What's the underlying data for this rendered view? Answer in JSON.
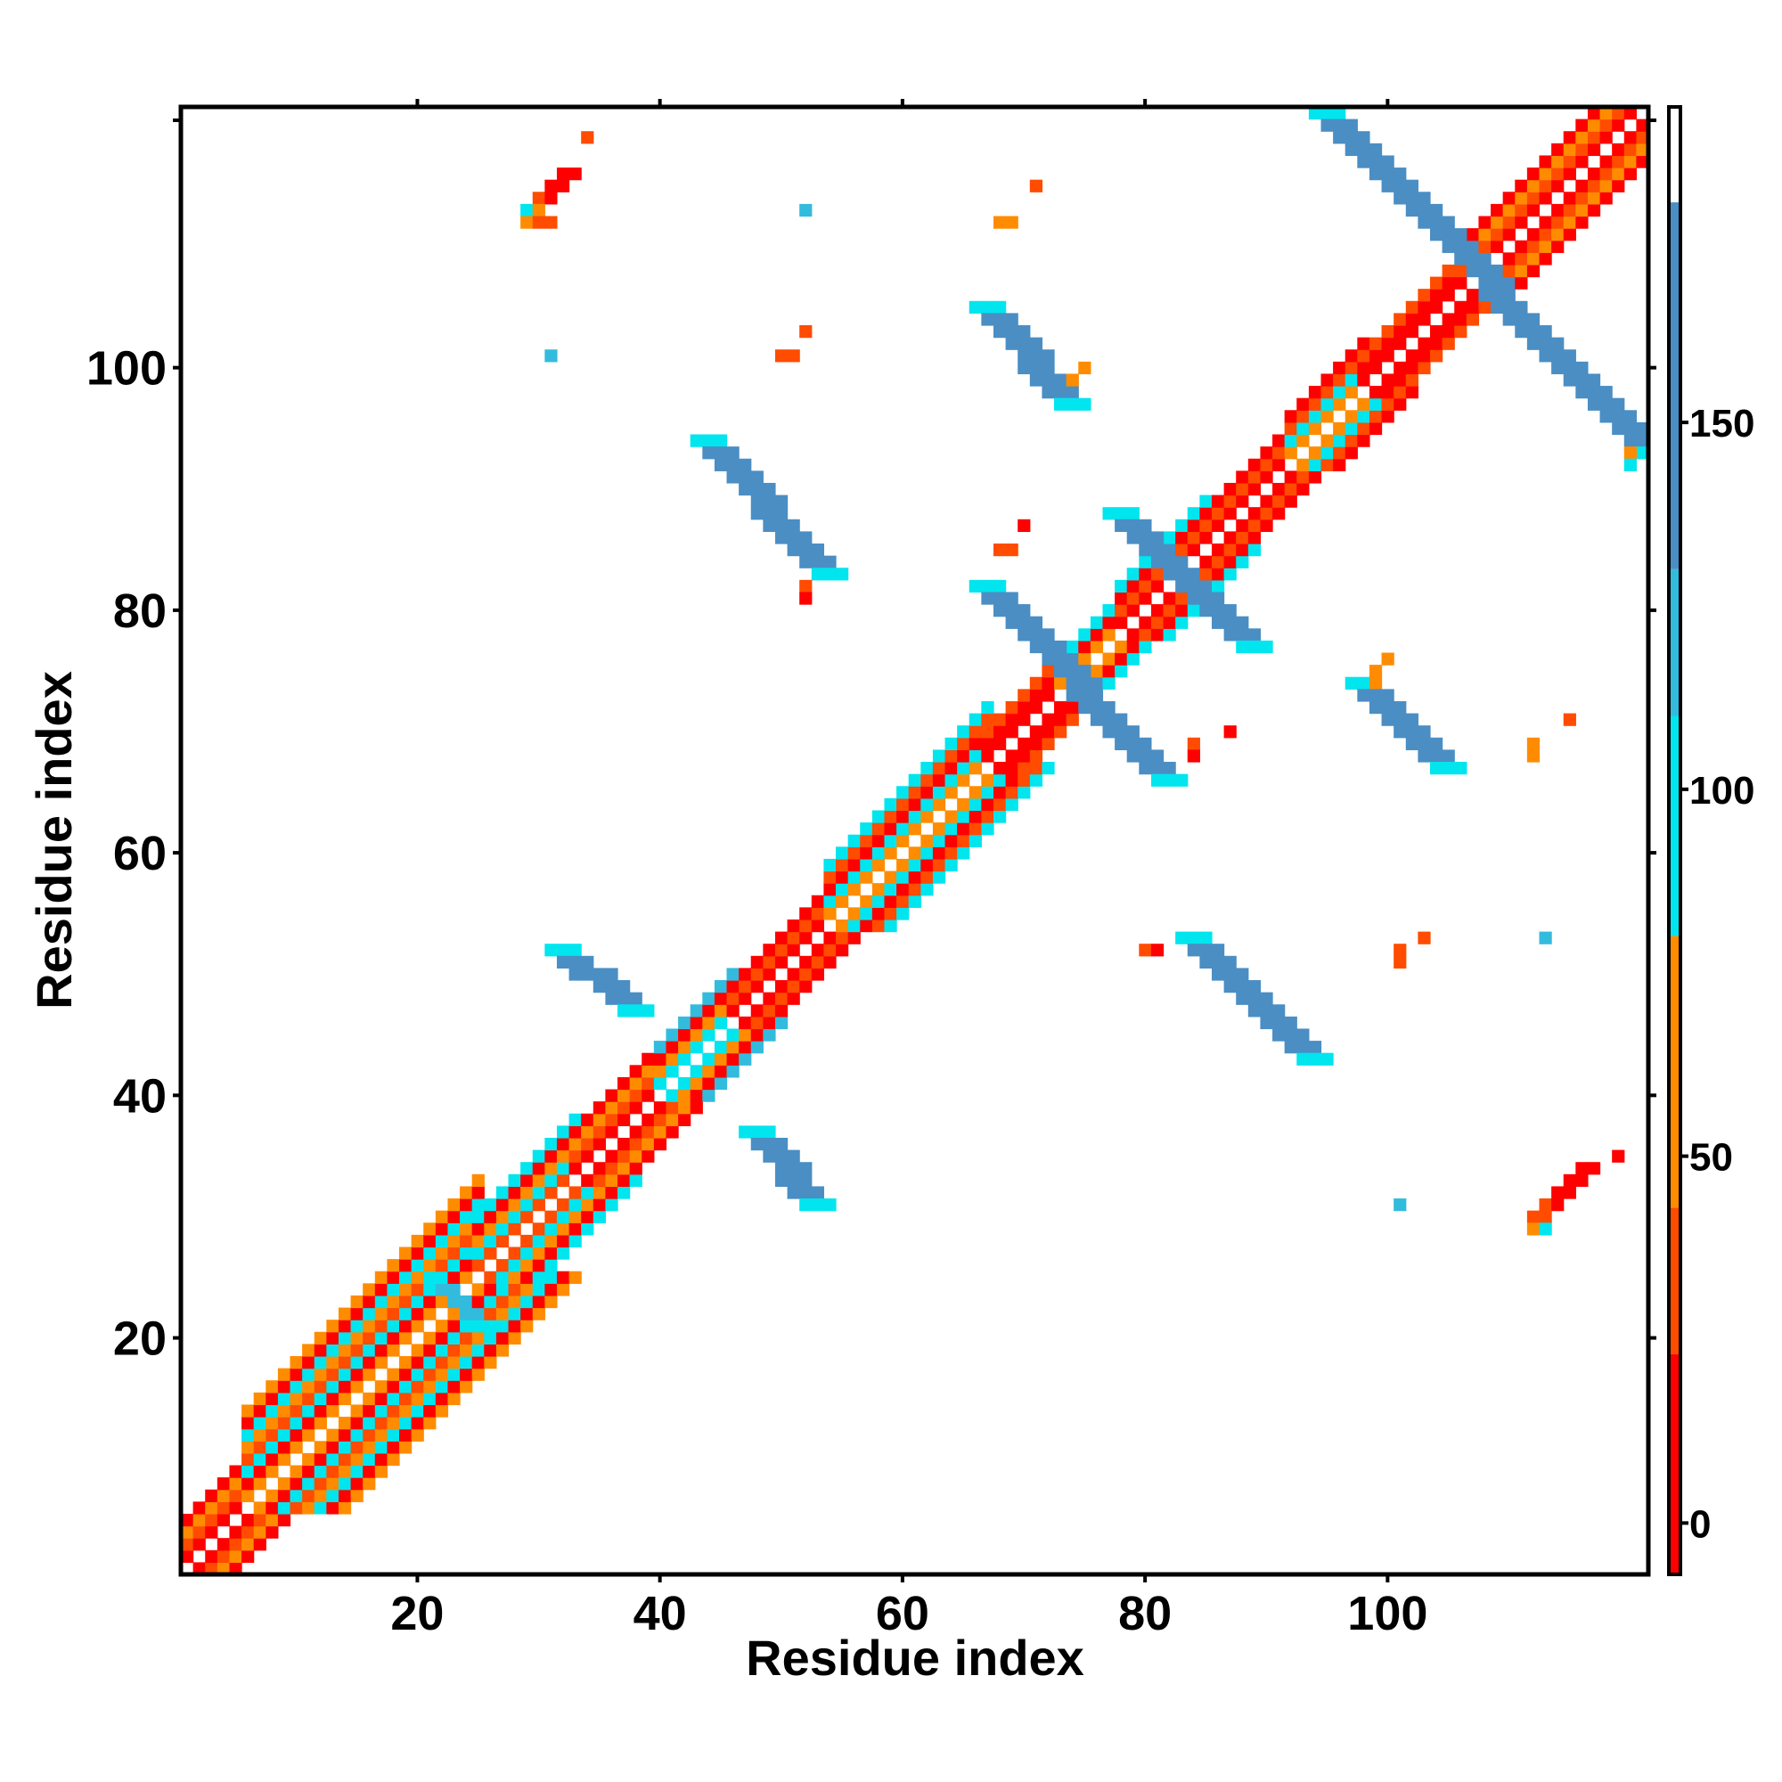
{
  "chart_data": {
    "type": "heatmap",
    "title": "",
    "xlabel": "Residue index",
    "ylabel": "Residue index",
    "xlim": [
      0.5,
      121.5
    ],
    "ylim": [
      0.5,
      121.5
    ],
    "xticks": [
      20,
      40,
      60,
      80,
      100
    ],
    "yticks": [
      20,
      40,
      60,
      80,
      100
    ],
    "grid": false,
    "colorbar": {
      "ticks": [
        0,
        50,
        100,
        150
      ],
      "range": [
        -7,
        193
      ],
      "bands": [
        {
          "from": -7,
          "to": 23,
          "color": "#ff0000"
        },
        {
          "from": 23,
          "to": 43,
          "color": "#ff4c00"
        },
        {
          "from": 43,
          "to": 80,
          "color": "#ff8c00"
        },
        {
          "from": 80,
          "to": 110,
          "color": "#00e5ee"
        },
        {
          "from": 110,
          "to": 130,
          "color": "#33bbdd"
        },
        {
          "from": 130,
          "to": 180,
          "color": "#4a8ec4"
        },
        {
          "from": 180,
          "to": 193,
          "color": "#ffffff"
        }
      ]
    },
    "colors": {
      "red": "#ff0000",
      "orange_red": "#ff4c00",
      "orange": "#ff8c00",
      "cyan": "#00e5ee",
      "sky": "#33bbdd",
      "steel_blue": "#4a8ec4"
    },
    "diagonal_bands": [
      {
        "start": 1,
        "end": 6,
        "pattern": [
          "red",
          "orange_red",
          "orange",
          "red"
        ]
      },
      {
        "start": 6,
        "end": 25,
        "pattern": [
          "orange",
          "red",
          "cyan",
          "orange_red",
          "orange",
          "cyan",
          "red",
          "orange"
        ]
      },
      {
        "start": 25,
        "end": 33,
        "pattern": [
          "orange_red",
          "cyan",
          "orange",
          "red",
          "cyan"
        ]
      },
      {
        "start": 33,
        "end": 40,
        "pattern": [
          "red",
          "orange_red",
          "orange",
          "red"
        ]
      },
      {
        "start": 40,
        "end": 46,
        "pattern": [
          "cyan",
          "orange",
          "red",
          "sky"
        ]
      },
      {
        "start": 46,
        "end": 54,
        "pattern": [
          "red",
          "orange_red",
          "red"
        ]
      },
      {
        "start": 54,
        "end": 67,
        "pattern": [
          "orange",
          "cyan",
          "red",
          "orange_red",
          "cyan"
        ]
      },
      {
        "start": 67,
        "end": 73,
        "pattern": [
          "red",
          "red",
          "orange_red"
        ]
      },
      {
        "start": 73,
        "end": 78,
        "pattern": [
          "orange",
          "red",
          "cyan"
        ]
      },
      {
        "start": 78,
        "end": 85,
        "pattern": [
          "red",
          "orange_red",
          "red",
          "cyan"
        ]
      },
      {
        "start": 85,
        "end": 92,
        "pattern": [
          "red",
          "orange_red",
          "red"
        ]
      },
      {
        "start": 92,
        "end": 98,
        "pattern": [
          "orange",
          "cyan",
          "orange_red",
          "red"
        ]
      },
      {
        "start": 98,
        "end": 106,
        "pattern": [
          "red",
          "red",
          "orange_red"
        ]
      },
      {
        "start": 106,
        "end": 121,
        "pattern": [
          "red",
          "orange_red",
          "orange",
          "red"
        ]
      }
    ],
    "anti_diagonal_bands": [
      {
        "color": "steel_blue",
        "edge": "cyan",
        "x0": 94,
        "y0": 121,
        "x1": 121,
        "y1": 93,
        "w": 3
      },
      {
        "color": "steel_blue",
        "edge": "cyan",
        "x0": 66,
        "y0": 105,
        "x1": 73,
        "y1": 97,
        "w": 3
      },
      {
        "color": "steel_blue",
        "edge": "cyan",
        "x0": 43,
        "y0": 94,
        "x1": 53,
        "y1": 83,
        "w": 3
      },
      {
        "color": "steel_blue",
        "edge": "cyan",
        "x0": 77,
        "y0": 88,
        "x1": 88,
        "y1": 77,
        "w": 3
      },
      {
        "color": "steel_blue",
        "edge": "cyan",
        "x0": 66,
        "y0": 82,
        "x1": 81,
        "y1": 66,
        "w": 3
      },
      {
        "color": "steel_blue",
        "edge": "cyan",
        "x0": 97,
        "y0": 74,
        "x1": 104,
        "y1": 67,
        "w": 3
      },
      {
        "color": "steel_blue",
        "edge": "cyan",
        "x0": 31,
        "y0": 52,
        "x1": 37,
        "y1": 47,
        "w": 3
      },
      {
        "color": "steel_blue",
        "edge": "cyan",
        "x0": 83,
        "y0": 53,
        "x1": 93,
        "y1": 43,
        "w": 3
      },
      {
        "color": "steel_blue",
        "edge": "cyan",
        "x0": 47,
        "y0": 37,
        "x1": 52,
        "y1": 31,
        "w": 3
      },
      {
        "color": "sky",
        "edge": "cyan",
        "x0": 21,
        "y0": 25,
        "x1": 25,
        "y1": 21,
        "w": 2
      }
    ],
    "scattered_cells": [
      {
        "x": 34,
        "y": 119,
        "c": "orange_red"
      },
      {
        "x": 32,
        "y": 116,
        "c": "red"
      },
      {
        "x": 33,
        "y": 116,
        "c": "red"
      },
      {
        "x": 31,
        "y": 115,
        "c": "red"
      },
      {
        "x": 32,
        "y": 115,
        "c": "red"
      },
      {
        "x": 30,
        "y": 114,
        "c": "orange_red"
      },
      {
        "x": 31,
        "y": 114,
        "c": "red"
      },
      {
        "x": 29,
        "y": 113,
        "c": "cyan"
      },
      {
        "x": 30,
        "y": 113,
        "c": "orange"
      },
      {
        "x": 29,
        "y": 112,
        "c": "orange"
      },
      {
        "x": 30,
        "y": 112,
        "c": "orange_red"
      },
      {
        "x": 31,
        "y": 112,
        "c": "orange_red"
      },
      {
        "x": 71,
        "y": 115,
        "c": "orange_red"
      },
      {
        "x": 52,
        "y": 113,
        "c": "sky"
      },
      {
        "x": 68,
        "y": 112,
        "c": "orange"
      },
      {
        "x": 69,
        "y": 112,
        "c": "orange"
      },
      {
        "x": 52,
        "y": 103,
        "c": "orange_red"
      },
      {
        "x": 50,
        "y": 101,
        "c": "orange_red"
      },
      {
        "x": 51,
        "y": 101,
        "c": "orange_red"
      },
      {
        "x": 31,
        "y": 101,
        "c": "sky"
      },
      {
        "x": 75,
        "y": 100,
        "c": "orange"
      },
      {
        "x": 74,
        "y": 99,
        "c": "orange"
      },
      {
        "x": 70,
        "y": 87,
        "c": "red"
      },
      {
        "x": 68,
        "y": 85,
        "c": "orange_red"
      },
      {
        "x": 69,
        "y": 85,
        "c": "orange_red"
      },
      {
        "x": 52,
        "y": 82,
        "c": "orange_red"
      },
      {
        "x": 52,
        "y": 81,
        "c": "red"
      },
      {
        "x": 100,
        "y": 76,
        "c": "orange"
      },
      {
        "x": 99,
        "y": 75,
        "c": "orange"
      },
      {
        "x": 99,
        "y": 74,
        "c": "orange"
      },
      {
        "x": 115,
        "y": 71,
        "c": "orange_red"
      },
      {
        "x": 87,
        "y": 70,
        "c": "red"
      },
      {
        "x": 84,
        "y": 69,
        "c": "orange_red"
      },
      {
        "x": 112,
        "y": 69,
        "c": "orange"
      },
      {
        "x": 84,
        "y": 68,
        "c": "red"
      },
      {
        "x": 112,
        "y": 68,
        "c": "orange"
      },
      {
        "x": 80,
        "y": 52,
        "c": "orange_red"
      },
      {
        "x": 81,
        "y": 52,
        "c": "red"
      },
      {
        "x": 103,
        "y": 53,
        "c": "orange_red"
      },
      {
        "x": 101,
        "y": 52,
        "c": "orange_red"
      },
      {
        "x": 101,
        "y": 51,
        "c": "orange_red"
      },
      {
        "x": 113,
        "y": 53,
        "c": "sky"
      },
      {
        "x": 119,
        "y": 35,
        "c": "red"
      },
      {
        "x": 116,
        "y": 34,
        "c": "red"
      },
      {
        "x": 117,
        "y": 34,
        "c": "red"
      },
      {
        "x": 115,
        "y": 33,
        "c": "red"
      },
      {
        "x": 116,
        "y": 33,
        "c": "red"
      },
      {
        "x": 114,
        "y": 32,
        "c": "red"
      },
      {
        "x": 115,
        "y": 32,
        "c": "red"
      },
      {
        "x": 113,
        "y": 31,
        "c": "orange_red"
      },
      {
        "x": 114,
        "y": 31,
        "c": "red"
      },
      {
        "x": 112,
        "y": 30,
        "c": "orange_red"
      },
      {
        "x": 113,
        "y": 30,
        "c": "orange_red"
      },
      {
        "x": 112,
        "y": 29,
        "c": "orange"
      },
      {
        "x": 113,
        "y": 29,
        "c": "cyan"
      },
      {
        "x": 101,
        "y": 31,
        "c": "sky"
      },
      {
        "x": 120,
        "y": 93,
        "c": "orange"
      },
      {
        "x": 120,
        "y": 92,
        "c": "cyan"
      }
    ]
  }
}
